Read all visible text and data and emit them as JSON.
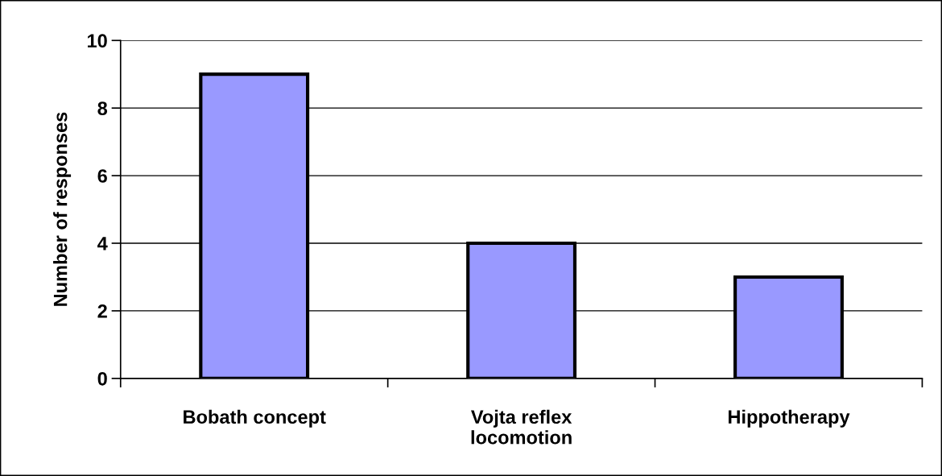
{
  "chart_data": {
    "type": "bar",
    "ylabel": "Number of responses",
    "categories": [
      "Bobath concept",
      "Vojta reflex\nlocomotion",
      "Hippotherapy"
    ],
    "values": [
      9,
      4,
      3
    ],
    "color": "#9999ff",
    "ylim": [
      0,
      10
    ],
    "yticks": [
      0,
      2,
      4,
      6,
      8,
      10
    ],
    "grid": "y"
  }
}
